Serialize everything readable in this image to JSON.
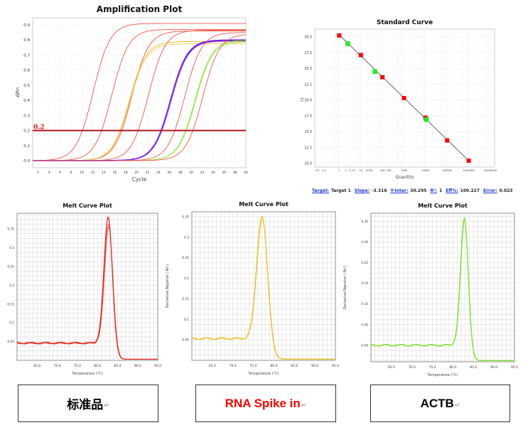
{
  "chart_data": [
    {
      "type": "line",
      "title": "Amplification Plot",
      "xlabel": "Cycle",
      "ylabel": "ΔRn",
      "xlim": [
        1,
        40
      ],
      "ylim": [
        -0.047,
        0.947
      ],
      "xticks": [
        "2",
        "4",
        "6",
        "8",
        "10",
        "12",
        "14",
        "16",
        "18",
        "20",
        "22",
        "24",
        "26",
        "28",
        "30",
        "32",
        "34",
        "36",
        "38",
        "40"
      ],
      "yticks": [
        "0.0",
        "0.1",
        "0.2",
        "0.3",
        "0.4",
        "0.5",
        "0.6",
        "0.7",
        "0.8",
        "0.9"
      ],
      "grid": true,
      "threshold": {
        "value": 0.2,
        "label": "0.2",
        "color": "#b0161c"
      },
      "series": [
        {
          "color": "#f0584a",
          "ct": 10.1,
          "plateau": 0.91
        },
        {
          "color": "#f0584a",
          "ct": 13.6,
          "plateau": 0.87
        },
        {
          "color": "#f0584a",
          "ct": 17.3,
          "plateau": 0.86
        },
        {
          "color": "#f2b400",
          "ct": 17.0,
          "plateau": 0.79
        },
        {
          "color": "#f0cc5a",
          "ct": 17.1,
          "plateau": 0.775
        },
        {
          "color": "#f0584a",
          "ct": 20.3,
          "plateau": 0.865
        },
        {
          "color": "#6a1de8",
          "ct": 24.5,
          "plateau": 0.8
        },
        {
          "color": "#8a2de8",
          "ct": 24.6,
          "plateau": 0.795
        },
        {
          "color": "#f0584a",
          "ct": 27.0,
          "plateau": 0.85
        },
        {
          "color": "#78e020",
          "ct": 29.0,
          "plateau": 0.8
        },
        {
          "color": "#9cea50",
          "ct": 29.1,
          "plateau": 0.79
        },
        {
          "color": "#f0584a",
          "ct": 30.3,
          "plateau": 0.84
        }
      ]
    },
    {
      "type": "scatter",
      "title": "Standard Curve",
      "xlabel": "Quantity",
      "ylabel": "Ct",
      "xscale": "log",
      "xlim": [
        0.1,
        10000000
      ],
      "ylim": [
        9.4,
        31.2
      ],
      "xticks": [
        "0.1",
        "0.2",
        "1",
        "2",
        "3",
        "4",
        "5",
        "10",
        "20",
        "30",
        "100",
        "200",
        "1000",
        "10000",
        "100000",
        "1000000",
        "10000000"
      ],
      "xtick_values": [
        0.1,
        0.2,
        1,
        2,
        3,
        4,
        5,
        10,
        20,
        30,
        100,
        200,
        1000,
        10000,
        100000,
        1000000,
        10000000
      ],
      "yticks": [
        "10.0",
        "12.5",
        "15.0",
        "17.5",
        "20.0",
        "22.5",
        "25.0",
        "27.5",
        "30.0"
      ],
      "grid": true,
      "standards": {
        "color": "#ff0000",
        "points": [
          [
            1,
            30.2
          ],
          [
            10,
            27.1
          ],
          [
            100,
            23.6
          ],
          [
            1000,
            20.3
          ],
          [
            10000,
            17.2
          ],
          [
            100000,
            13.6
          ],
          [
            1000000,
            10.4
          ]
        ]
      },
      "unknowns": {
        "color": "#22ee22",
        "points": [
          [
            2.5,
            28.9
          ],
          [
            45,
            24.5
          ],
          [
            11000,
            16.9
          ]
        ]
      },
      "fit_range": [
        1,
        1000000
      ],
      "stats": [
        {
          "key": "Target:",
          "value": "Target 1"
        },
        {
          "key": "Slope:",
          "value": "-3.316"
        },
        {
          "key": "Y-Inter:",
          "value": "30.295"
        },
        {
          "key": "R²:",
          "value": "1"
        },
        {
          "key": "Eff%:",
          "value": "100.227"
        },
        {
          "key": "Error:",
          "value": "0.023"
        }
      ],
      "slope": -3.316,
      "intercept": 30.295
    },
    {
      "type": "line",
      "title": "Melt Curve Plot",
      "xlabel": "Temperature (°C)",
      "ylabel": "",
      "xlim": [
        60,
        95
      ],
      "ylim": [
        0,
        0.392
      ],
      "xticks": [
        "65.0",
        "70.0",
        "75.0",
        "80.0",
        "85.0",
        "90.0",
        "95.0"
      ],
      "yticks": [
        "0.05",
        "0.1",
        "0.15",
        "0.2",
        "0.25",
        "0.3",
        "0.35"
      ],
      "ytick_values": [
        0.05,
        0.1,
        0.15,
        0.2,
        0.25,
        0.3,
        0.35
      ],
      "color": "#e8281c",
      "peak_temp": 82.7,
      "baseline": 0.043,
      "sigma": 1.05,
      "replicate_peaks": [
        0.39,
        0.372,
        0.365
      ]
    },
    {
      "type": "line",
      "title": "Melt Curve Plot",
      "xlabel": "Temperature (°C)",
      "ylabel": "Derivative Reporter (-Rn')",
      "xlim": [
        60,
        95
      ],
      "ylim": [
        0,
        0.362
      ],
      "xticks": [
        "65.0",
        "70.0",
        "75.0",
        "80.0",
        "85.0",
        "90.0",
        "95.0"
      ],
      "yticks": [
        "0.05",
        "0.1",
        "0.15",
        "0.2",
        "0.25",
        "0.3",
        "0.35"
      ],
      "ytick_values": [
        0.05,
        0.1,
        0.15,
        0.2,
        0.25,
        0.3,
        0.35
      ],
      "color": "#e8c020",
      "peak_temp": 77.2,
      "baseline": 0.05,
      "sigma": 1.35,
      "replicate_peaks": [
        0.36,
        0.355
      ]
    },
    {
      "type": "line",
      "title": "Melt Curve Plot",
      "xlabel": "Temperature (°C)",
      "ylabel": "Derivative Reporter (-Rn')",
      "xlim": [
        60,
        95
      ],
      "ylim": [
        0,
        0.36
      ],
      "xticks": [
        "65.0",
        "70.0",
        "75.0",
        "80.0",
        "85.0",
        "90.0",
        "95.0"
      ],
      "yticks": [
        "0.04",
        "0.09",
        "0.14",
        "0.19",
        "0.24",
        "0.29",
        "0.34"
      ],
      "ytick_values": [
        0.04,
        0.09,
        0.14,
        0.19,
        0.24,
        0.29,
        0.34
      ],
      "color": "#7ee030",
      "peak_temp": 82.8,
      "baseline": 0.037,
      "sigma": 0.95,
      "replicate_peaks": [
        0.355,
        0.348
      ]
    }
  ],
  "labels": {
    "standard": "标准品",
    "spike": "RNA Spike in",
    "actb": "ACTB",
    "return_mark": "↵",
    "spike_color": "#ff0000"
  }
}
